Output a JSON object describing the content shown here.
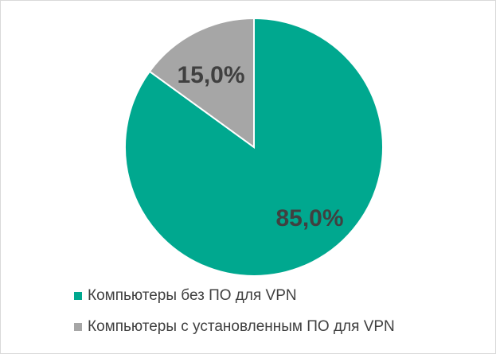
{
  "chart_data": {
    "type": "pie",
    "slices": [
      {
        "name": "Компьютеры без ПО для VPN",
        "value": 85.0,
        "label": "85,0%",
        "color": "#00a88f"
      },
      {
        "name": "Компьютеры с установленным ПО для VPN",
        "value": 15.0,
        "label": "15,0%",
        "color": "#a6a6a6"
      }
    ],
    "start_angle_deg": 0,
    "direction": "clockwise",
    "legend_position": "bottom"
  }
}
